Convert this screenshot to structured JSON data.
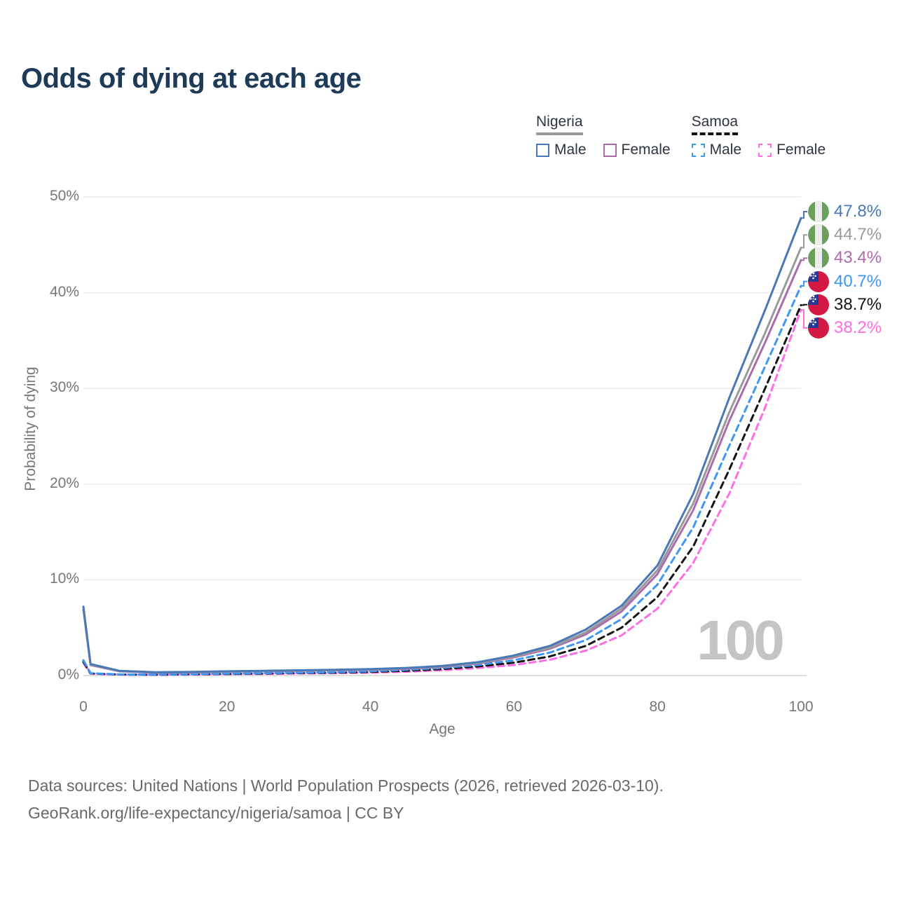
{
  "title": "Odds of dying at each age",
  "watermark_age": "100",
  "legend": {
    "groups": [
      {
        "label": "Nigeria",
        "line_style": "solid",
        "line_color": "#9a9a9a",
        "items": [
          {
            "label": "Male",
            "color": "#4878b8",
            "dashed": false
          },
          {
            "label": "Female",
            "color": "#ab6bac",
            "dashed": false
          }
        ]
      },
      {
        "label": "Samoa",
        "line_style": "dashed",
        "line_color": "#141414",
        "items": [
          {
            "label": "Male",
            "color": "#3d97f5",
            "dashed": true
          },
          {
            "label": "Female",
            "color": "#ff6ee4",
            "dashed": true
          }
        ]
      }
    ]
  },
  "axes": {
    "x": {
      "label": "Age",
      "ticks": [
        0,
        20,
        40,
        60,
        80,
        100
      ],
      "min": 0,
      "max": 100
    },
    "y": {
      "label": "Probability of dying",
      "ticks": [
        0,
        10,
        20,
        30,
        40,
        50
      ],
      "tick_suffix": "%",
      "min": 0,
      "max": 50
    }
  },
  "footer": {
    "line1": "Data sources: United Nations | World Population Prospects (2026, retrieved 2026-03-10).",
    "line2": "GeoRank.org/life-expectancy/nigeria/samoa | CC BY"
  },
  "chart_data": {
    "type": "line",
    "title": "Odds of dying at each age",
    "xlabel": "Age",
    "ylabel": "Probability of dying",
    "xlim": [
      0,
      100
    ],
    "ylim": [
      0,
      50
    ],
    "grid": true,
    "unit": "percent",
    "x": [
      0,
      1,
      5,
      10,
      15,
      20,
      25,
      30,
      35,
      40,
      45,
      50,
      55,
      60,
      65,
      70,
      75,
      80,
      85,
      90,
      95,
      100
    ],
    "series": [
      {
        "name": "Nigeria Male",
        "country": "Nigeria",
        "sex": "Male",
        "color": "#4878b8",
        "dashed": false,
        "end_label": "47.8%",
        "values": [
          7.2,
          1.2,
          0.5,
          0.35,
          0.38,
          0.45,
          0.5,
          0.55,
          0.6,
          0.68,
          0.8,
          1.0,
          1.4,
          2.1,
          3.1,
          4.8,
          7.3,
          11.5,
          19.0,
          29.0,
          38.2,
          47.8
        ]
      },
      {
        "name": "Nigeria (all)",
        "country": "Nigeria",
        "sex": "All",
        "color": "#9a9a9a",
        "dashed": false,
        "end_label": "44.7%",
        "values": [
          7.0,
          1.15,
          0.48,
          0.33,
          0.35,
          0.42,
          0.47,
          0.52,
          0.57,
          0.64,
          0.76,
          0.95,
          1.3,
          2.0,
          2.9,
          4.5,
          7.0,
          11.0,
          18.0,
          27.5,
          35.8,
          44.7
        ]
      },
      {
        "name": "Nigeria Female",
        "country": "Nigeria",
        "sex": "Female",
        "color": "#ab6bac",
        "dashed": false,
        "end_label": "43.4%",
        "values": [
          6.9,
          1.1,
          0.45,
          0.3,
          0.32,
          0.4,
          0.45,
          0.5,
          0.55,
          0.6,
          0.72,
          0.9,
          1.25,
          1.9,
          2.8,
          4.3,
          6.7,
          10.6,
          17.3,
          26.6,
          34.8,
          43.4
        ]
      },
      {
        "name": "Samoa Male",
        "country": "Samoa",
        "sex": "Male",
        "color": "#3d97f5",
        "dashed": true,
        "end_label": "40.7%",
        "values": [
          1.6,
          0.25,
          0.12,
          0.1,
          0.15,
          0.2,
          0.25,
          0.3,
          0.35,
          0.45,
          0.6,
          0.8,
          1.1,
          1.6,
          2.4,
          3.7,
          5.9,
          9.5,
          15.5,
          24.0,
          32.3,
          40.7
        ]
      },
      {
        "name": "Samoa (all)",
        "country": "Samoa",
        "sex": "All",
        "color": "#141414",
        "dashed": true,
        "end_label": "38.7%",
        "values": [
          1.45,
          0.22,
          0.11,
          0.09,
          0.13,
          0.17,
          0.21,
          0.26,
          0.3,
          0.38,
          0.5,
          0.68,
          0.95,
          1.35,
          2.0,
          3.1,
          5.0,
          8.2,
          13.5,
          21.5,
          30.0,
          38.7
        ]
      },
      {
        "name": "Samoa Female",
        "country": "Samoa",
        "sex": "Female",
        "color": "#ff6ee4",
        "dashed": true,
        "end_label": "38.2%",
        "values": [
          1.3,
          0.2,
          0.1,
          0.08,
          0.1,
          0.14,
          0.17,
          0.21,
          0.25,
          0.3,
          0.4,
          0.55,
          0.78,
          1.1,
          1.65,
          2.6,
          4.2,
          7.0,
          11.8,
          19.0,
          28.0,
          38.2
        ]
      }
    ]
  }
}
